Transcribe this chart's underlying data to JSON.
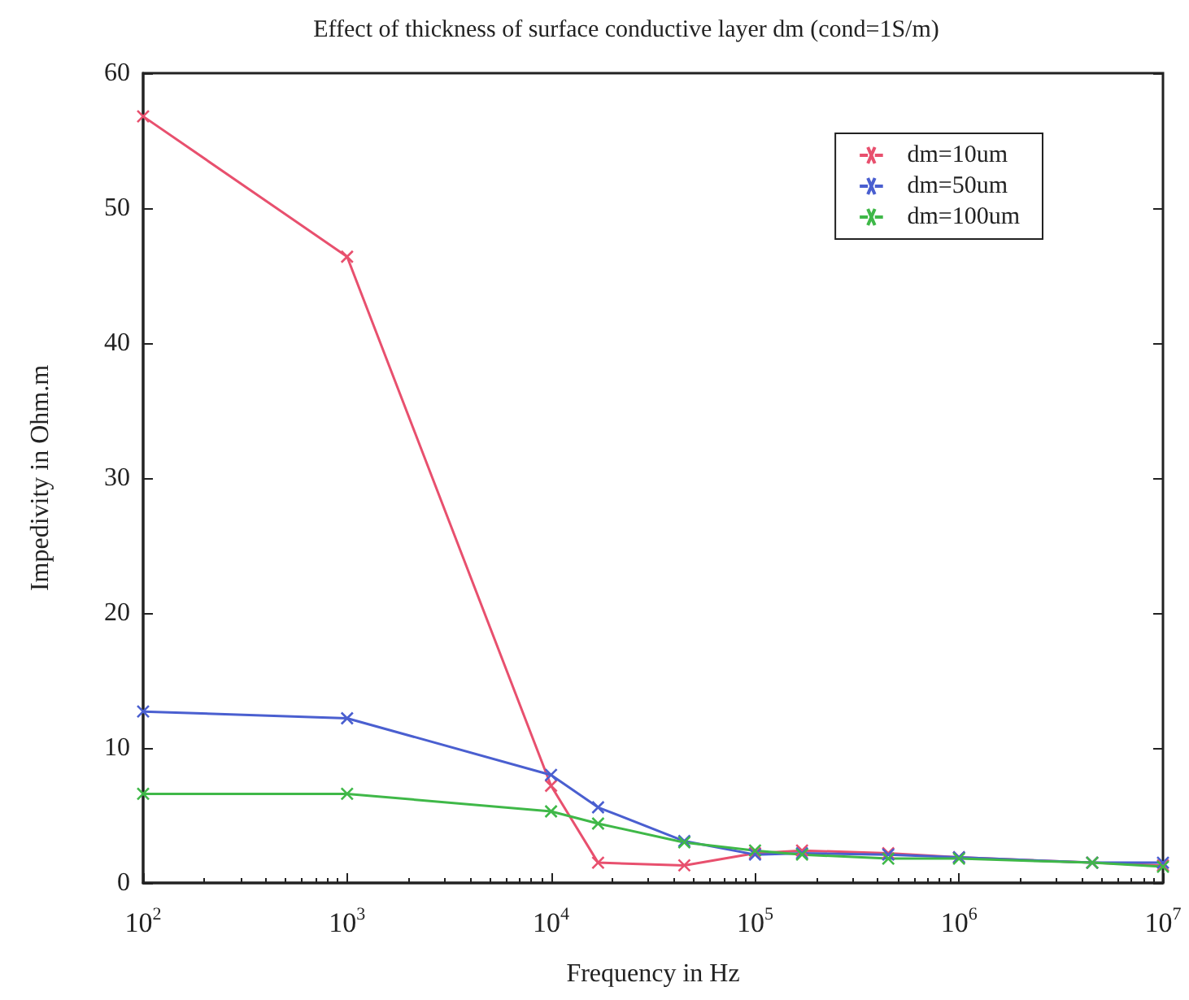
{
  "chart_data": {
    "type": "line",
    "title": "Effect of thickness of surface conductive layer dm (cond=1S/m)",
    "xlabel": "Frequency in Hz",
    "ylabel": "Impedivity in Ohm.m",
    "x": [
      100,
      1000,
      10000,
      17000,
      45000,
      100000,
      170000,
      450000,
      1000000,
      4500000,
      10000000
    ],
    "series": [
      {
        "name": "dm=10um",
        "color": "#e8506e",
        "values": [
          56.8,
          46.4,
          7.2,
          1.5,
          1.3,
          2.2,
          2.4,
          2.2,
          1.9,
          1.5,
          1.3
        ]
      },
      {
        "name": "dm=50um",
        "color": "#4a5fd0",
        "values": [
          12.7,
          12.2,
          8.0,
          5.6,
          3.1,
          2.1,
          2.2,
          2.1,
          1.9,
          1.5,
          1.5
        ]
      },
      {
        "name": "dm=100um",
        "color": "#3fb848",
        "values": [
          6.6,
          6.6,
          5.3,
          4.4,
          3.0,
          2.4,
          2.1,
          1.8,
          1.8,
          1.5,
          1.2
        ]
      }
    ],
    "log": "x",
    "xlim": [
      100,
      10000000
    ],
    "xticks": [
      {
        "value": 100,
        "label": "10$^{2}$"
      },
      {
        "value": 1000,
        "label": "10$^{3}$"
      },
      {
        "value": 10000,
        "label": "10$^{4}$"
      },
      {
        "value": 100000,
        "label": "10$^{5}$"
      },
      {
        "value": 1000000,
        "label": "10$^{6}$"
      },
      {
        "value": 10000000,
        "label": "10$^{7}$"
      }
    ],
    "ylim": [
      0,
      60
    ],
    "yticks": [
      0,
      10,
      20,
      30,
      40,
      50,
      60
    ],
    "grid": false,
    "legend": "top right",
    "marker": "cross",
    "line_style": "solid"
  }
}
